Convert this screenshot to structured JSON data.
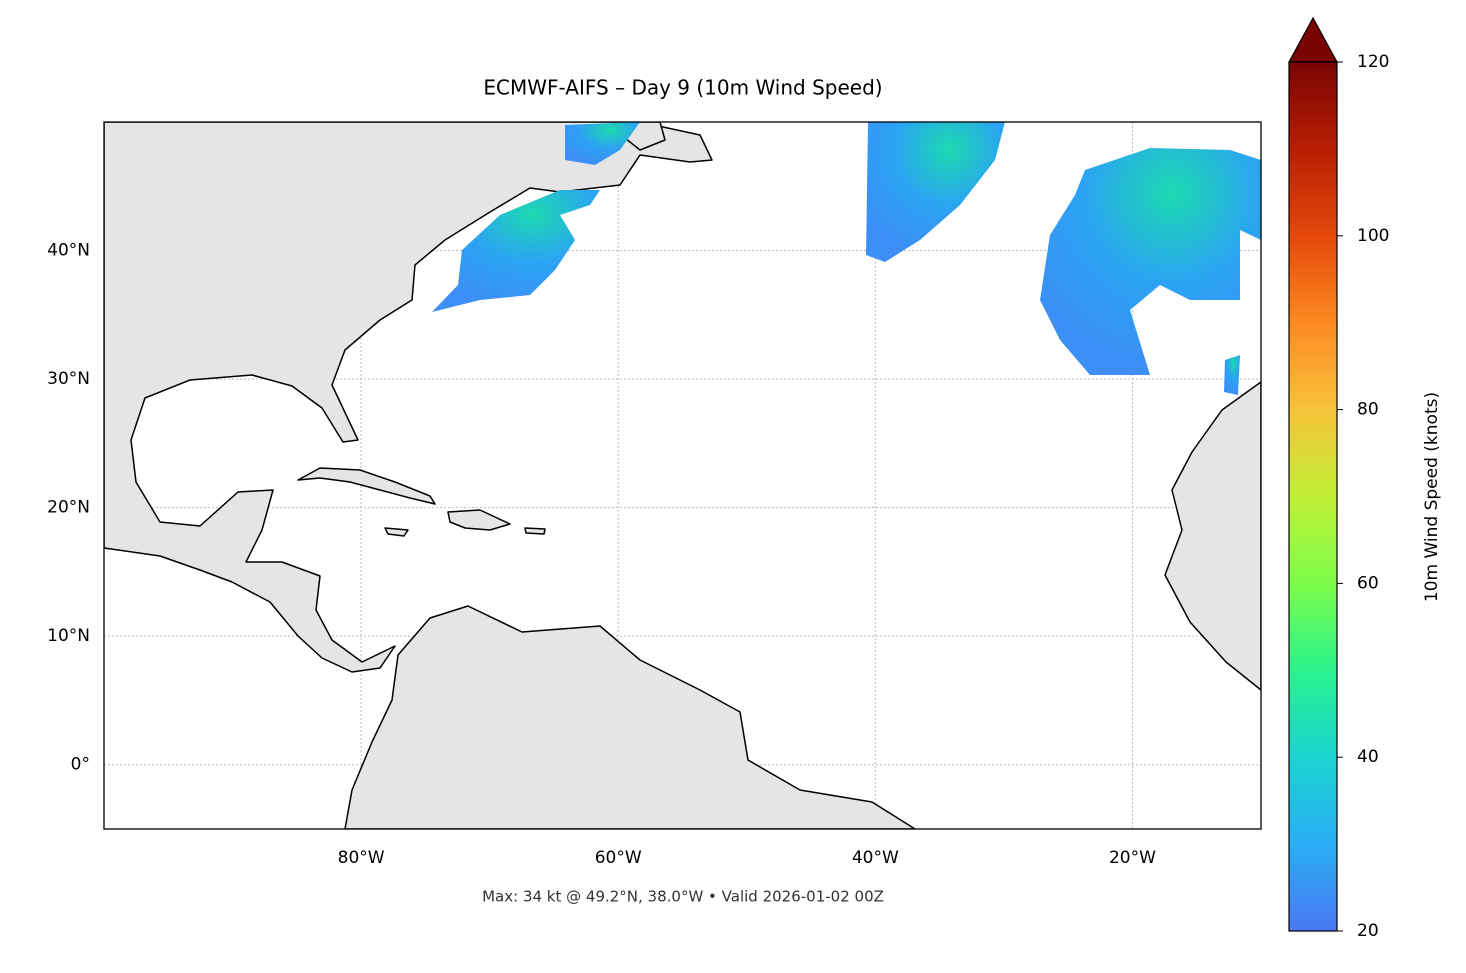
{
  "title": "ECMWF-AIFS – Day 9 (10m Wind Speed)",
  "footnote": "Max: 34 kt @ 49.2°N, 38.0°W • Valid 2026-01-02 00Z",
  "map": {
    "lonlim": [
      -100,
      -10
    ],
    "latlim": [
      -5,
      50
    ],
    "lon_ticks": [
      {
        "value": -80,
        "label": "80°W"
      },
      {
        "value": -60,
        "label": "60°W"
      },
      {
        "value": -40,
        "label": "40°W"
      },
      {
        "value": -20,
        "label": "20°W"
      }
    ],
    "lat_ticks": [
      {
        "value": 0,
        "label": "0°"
      },
      {
        "value": 10,
        "label": "10°N"
      },
      {
        "value": 20,
        "label": "20°N"
      },
      {
        "value": 30,
        "label": "30°N"
      },
      {
        "value": 40,
        "label": "40°N"
      }
    ],
    "grid": true
  },
  "colorbar": {
    "label": "10m Wind Speed (knots)",
    "lim": [
      20,
      120
    ],
    "ticks": [
      20,
      40,
      60,
      80,
      100,
      120
    ],
    "extend": "max",
    "colormap": [
      "#4a78f2",
      "#2aaef4",
      "#1ad3d0",
      "#2af28c",
      "#7cfd49",
      "#c0ee35",
      "#f6c33a",
      "#fb8a22",
      "#e4480b",
      "#b71f04",
      "#7a0403"
    ]
  }
}
